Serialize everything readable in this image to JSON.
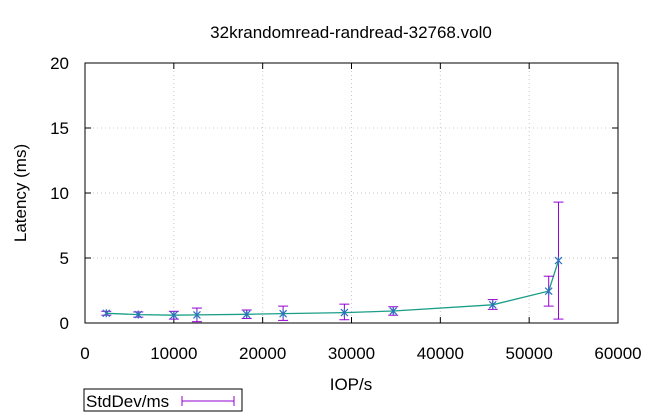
{
  "chart_data": {
    "type": "line",
    "title": "32krandomread-randread-32768.vol0",
    "xlabel": "IOP/s",
    "ylabel": "Latency (ms)",
    "xlim": [
      0,
      60000
    ],
    "ylim": [
      0,
      20
    ],
    "xticks": [
      0,
      10000,
      20000,
      30000,
      40000,
      50000,
      60000
    ],
    "yticks": [
      0,
      5,
      10,
      15,
      20
    ],
    "grid": true,
    "legend_position": "bottom-left",
    "series": [
      {
        "name": "StdDev/ms",
        "color": "#9400d3",
        "line_color": "#1a9e87",
        "marker_color": "#2f6fbf",
        "x": [
          2400,
          6000,
          10000,
          12600,
          18200,
          22300,
          29200,
          34700,
          45900,
          52200,
          53300
        ],
        "y": [
          0.75,
          0.65,
          0.6,
          0.62,
          0.67,
          0.72,
          0.8,
          0.92,
          1.4,
          2.45,
          4.8
        ],
        "err_low": [
          0.6,
          0.45,
          0.3,
          0.1,
          0.35,
          0.2,
          0.25,
          0.6,
          1.05,
          1.3,
          0.3
        ],
        "err_high": [
          0.9,
          0.85,
          0.9,
          1.15,
          1.0,
          1.3,
          1.45,
          1.25,
          1.8,
          3.6,
          9.3
        ]
      }
    ]
  }
}
